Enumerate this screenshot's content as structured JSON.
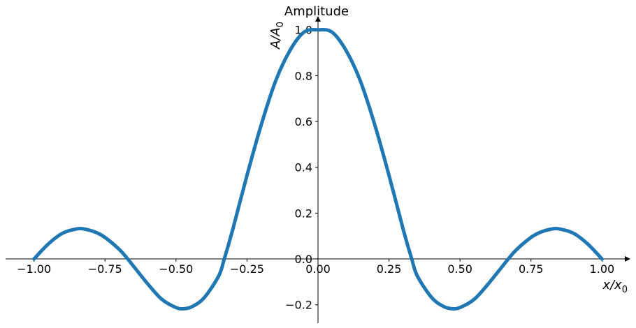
{
  "chart_data": {
    "type": "line",
    "title": "Amplitude",
    "xlabel": "x/x",
    "xlabel_sub": "0",
    "ylabel": "A/A",
    "ylabel_sub": "0",
    "xlim": [
      -1.1,
      1.1
    ],
    "ylim": [
      -0.28,
      1.06
    ],
    "x_ticks": [
      -1.0,
      -0.75,
      -0.5,
      -0.25,
      0.0,
      0.25,
      0.5,
      0.75,
      1.0
    ],
    "x_tick_labels": [
      "−1.00",
      "−0.75",
      "−0.50",
      "−0.25",
      "0.00",
      "0.25",
      "0.50",
      "0.75",
      "1.00"
    ],
    "y_ticks": [
      -0.2,
      0.0,
      0.2,
      0.4,
      0.6,
      0.8,
      1.0
    ],
    "y_tick_labels": [
      "−0.2",
      "0.0",
      "0.2",
      "0.4",
      "0.6",
      "0.8",
      "1.0"
    ],
    "grid": false,
    "series": [
      {
        "color": "#1f77b4",
        "x": [
          -1.0,
          -0.95,
          -0.9,
          -0.85,
          -0.82,
          -0.78,
          -0.75,
          -0.7,
          -0.67,
          -0.6,
          -0.55,
          -0.5,
          -0.47,
          -0.44,
          -0.4,
          -0.35,
          -0.33,
          -0.3,
          -0.25,
          -0.2,
          -0.15,
          -0.1,
          -0.05,
          0.0,
          0.05,
          0.1,
          0.15,
          0.2,
          0.25,
          0.3,
          0.33,
          0.35,
          0.4,
          0.44,
          0.47,
          0.5,
          0.55,
          0.6,
          0.67,
          0.7,
          0.75,
          0.78,
          0.82,
          0.85,
          0.9,
          0.95,
          1.0
        ],
        "y": [
          0.0,
          0.065,
          0.112,
          0.131,
          0.13,
          0.115,
          0.094,
          0.042,
          0.0,
          -0.108,
          -0.176,
          -0.212,
          -0.217,
          -0.206,
          -0.168,
          -0.075,
          0.0,
          0.129,
          0.365,
          0.585,
          0.774,
          0.907,
          0.989,
          1.0,
          0.989,
          0.907,
          0.774,
          0.585,
          0.365,
          0.129,
          0.0,
          -0.075,
          -0.168,
          -0.206,
          -0.217,
          -0.212,
          -0.176,
          -0.108,
          0.0,
          0.042,
          0.094,
          0.115,
          0.13,
          0.131,
          0.112,
          0.065,
          0.0
        ]
      }
    ]
  }
}
